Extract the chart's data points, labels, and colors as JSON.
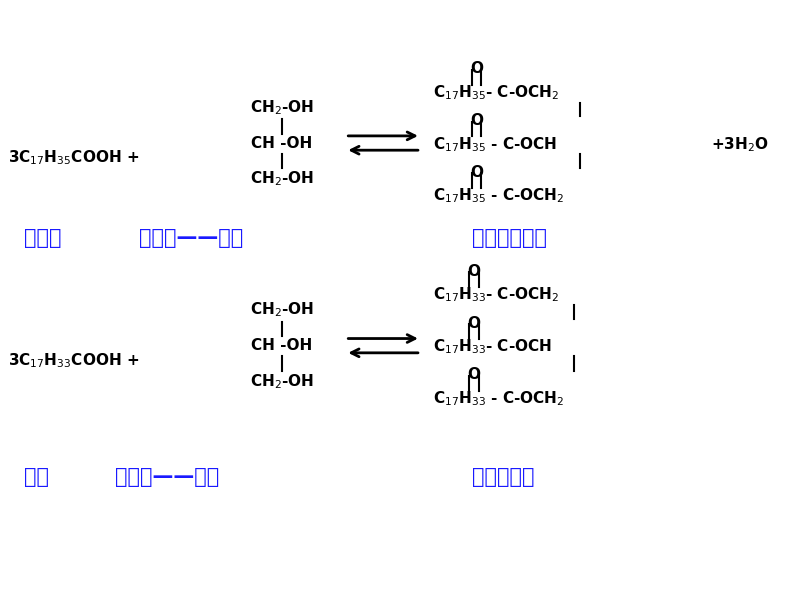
{
  "bg_color": "#ffffff",
  "black": "#000000",
  "blue": "#1a1aff",
  "figsize": [
    7.94,
    5.96
  ],
  "dpi": 100,
  "reaction1": {
    "reactant_acid": "3C$_{17}$H$_{35}$COOH +",
    "glycerol_top": "CH$_2$-OH",
    "glycerol_mid": "CH -OH",
    "glycerol_bot": "CH$_2$-OH",
    "product_top": "C$_{17}$H$_{35}$- C-OCH$_2$",
    "product_mid": "C$_{17}$H$_{35}$ - C-OCH",
    "product_bot": "C$_{17}$H$_{35}$ - C-OCH$_2$",
    "byproduct": "+3H$_2$O",
    "label_acid": "硬脂酸",
    "label_glycerol": "丙三醇——甘油",
    "label_product": "硬脂酸甘油脂"
  },
  "reaction2": {
    "reactant_acid": "3C$_{17}$H$_{33}$COOH +",
    "glycerol_top": "CH$_2$-OH",
    "glycerol_mid": "CH -OH",
    "glycerol_bot": "CH$_2$-OH",
    "product_top": "C$_{17}$H$_{33}$- C-OCH$_2$",
    "product_mid": "C$_{17}$H$_{33}$- C-OCH",
    "product_bot": "C$_{17}$H$_{33}$ - C-OCH$_2$",
    "label_acid": "油酸",
    "label_glycerol": "丙三醇——甘油",
    "label_product": "油酸甘油脂"
  }
}
